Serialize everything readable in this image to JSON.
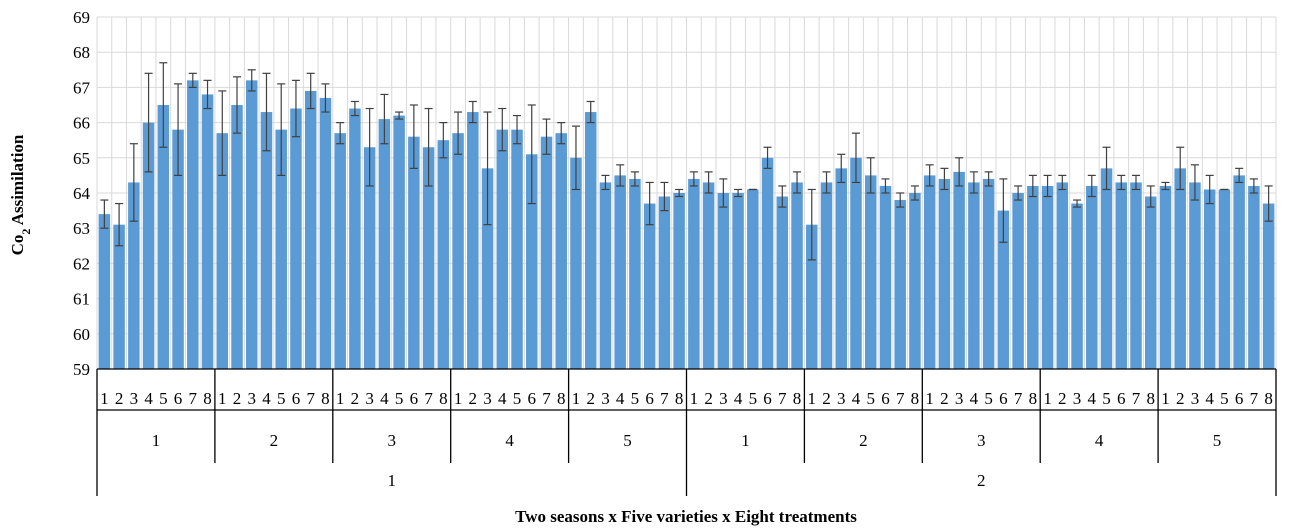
{
  "chart_data": {
    "type": "bar",
    "title": "",
    "xlabel": "Two seasons x Five varieties x Eight treatments",
    "ylabel_main": "Co",
    "ylabel_sub": "2",
    "ylabel_rest": " Assimilation",
    "ylim": [
      59,
      69
    ],
    "yticks": [
      59,
      60,
      61,
      62,
      63,
      64,
      65,
      66,
      67,
      68,
      69
    ],
    "grid": true,
    "bar_color": "#5b9bd5",
    "error_color": "#404040",
    "grid_color": "#d9d9d9",
    "seasons": [
      "1",
      "2"
    ],
    "varieties": [
      "1",
      "2",
      "3",
      "4",
      "5"
    ],
    "treatments": [
      "1",
      "2",
      "3",
      "4",
      "5",
      "6",
      "7",
      "8"
    ],
    "values": [
      63.4,
      63.1,
      64.3,
      66.0,
      66.5,
      65.8,
      67.2,
      66.8,
      65.7,
      66.5,
      67.2,
      66.3,
      65.8,
      66.4,
      66.9,
      66.7,
      65.7,
      66.4,
      65.3,
      66.1,
      66.2,
      65.6,
      65.3,
      65.5,
      65.7,
      66.3,
      64.7,
      65.8,
      65.8,
      65.1,
      65.6,
      65.7,
      65.0,
      66.3,
      64.3,
      64.5,
      64.4,
      63.7,
      63.9,
      64.0,
      64.4,
      64.3,
      64.0,
      64.0,
      64.1,
      65.0,
      63.9,
      64.3,
      63.1,
      64.3,
      64.7,
      65.0,
      64.5,
      64.2,
      63.8,
      64.0,
      64.5,
      64.4,
      64.6,
      64.3,
      64.4,
      63.5,
      64.0,
      64.2,
      64.2,
      64.3,
      63.7,
      64.2,
      64.7,
      64.3,
      64.3,
      63.9,
      64.2,
      64.7,
      64.3,
      64.1,
      64.1,
      64.5,
      64.2,
      63.7
    ],
    "errors": [
      0.4,
      0.6,
      1.1,
      1.4,
      1.2,
      1.3,
      0.2,
      0.4,
      1.2,
      0.8,
      0.3,
      1.1,
      1.3,
      0.8,
      0.5,
      0.4,
      0.3,
      0.2,
      1.1,
      0.7,
      0.1,
      0.9,
      1.1,
      0.5,
      0.6,
      0.3,
      1.6,
      0.6,
      0.4,
      1.4,
      0.5,
      0.3,
      0.9,
      0.3,
      0.2,
      0.3,
      0.2,
      0.6,
      0.4,
      0.1,
      0.2,
      0.3,
      0.4,
      0.1,
      0.0,
      0.3,
      0.3,
      0.3,
      1.0,
      0.3,
      0.4,
      0.7,
      0.5,
      0.2,
      0.2,
      0.2,
      0.3,
      0.3,
      0.4,
      0.3,
      0.2,
      0.9,
      0.2,
      0.3,
      0.3,
      0.2,
      0.1,
      0.3,
      0.6,
      0.2,
      0.2,
      0.3,
      0.1,
      0.6,
      0.5,
      0.4,
      0.0,
      0.2,
      0.2,
      0.5
    ]
  }
}
